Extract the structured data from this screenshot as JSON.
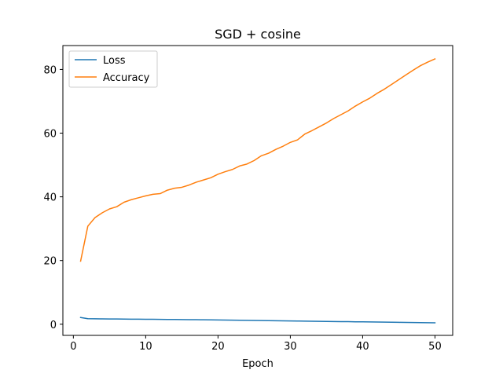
{
  "chart_data": {
    "type": "line",
    "title": "SGD + cosine",
    "xlabel": "Epoch",
    "ylabel": "",
    "xlim": [
      -1.45,
      52.45
    ],
    "ylim": [
      -3.5,
      87.5
    ],
    "xticks": [
      0,
      10,
      20,
      30,
      40,
      50
    ],
    "yticks": [
      0,
      20,
      40,
      60,
      80
    ],
    "grid": false,
    "legend_position": "top-left",
    "x": [
      1,
      2,
      3,
      4,
      5,
      6,
      7,
      8,
      9,
      10,
      11,
      12,
      13,
      14,
      15,
      16,
      17,
      18,
      19,
      20,
      21,
      22,
      23,
      24,
      25,
      26,
      27,
      28,
      29,
      30,
      31,
      32,
      33,
      34,
      35,
      36,
      37,
      38,
      39,
      40,
      41,
      42,
      43,
      44,
      45,
      46,
      47,
      48,
      49,
      50
    ],
    "series": [
      {
        "name": "Loss",
        "color": "#1f77b4",
        "values": [
          2.1,
          1.75,
          1.7,
          1.68,
          1.66,
          1.64,
          1.62,
          1.6,
          1.58,
          1.56,
          1.54,
          1.52,
          1.5,
          1.48,
          1.46,
          1.44,
          1.42,
          1.4,
          1.37,
          1.34,
          1.31,
          1.28,
          1.25,
          1.22,
          1.19,
          1.16,
          1.13,
          1.1,
          1.07,
          1.04,
          1.01,
          0.98,
          0.95,
          0.92,
          0.89,
          0.86,
          0.83,
          0.8,
          0.77,
          0.74,
          0.71,
          0.68,
          0.65,
          0.62,
          0.59,
          0.56,
          0.53,
          0.5,
          0.48,
          0.45
        ]
      },
      {
        "name": "Accuracy",
        "color": "#ff7f0e",
        "values": [
          19.8,
          30.8,
          33.5,
          35.0,
          36.2,
          36.9,
          38.3,
          39.1,
          39.7,
          40.3,
          40.8,
          41.0,
          42.1,
          42.7,
          43.0,
          43.7,
          44.6,
          45.3,
          46.0,
          47.1,
          47.9,
          48.6,
          49.7,
          50.3,
          51.4,
          52.9,
          53.7,
          54.9,
          55.9,
          57.1,
          57.9,
          59.7,
          60.8,
          62.0,
          63.2,
          64.6,
          65.8,
          67.0,
          68.5,
          69.8,
          71.0,
          72.5,
          73.8,
          75.3,
          76.8,
          78.3,
          79.8,
          81.2,
          82.3,
          83.3
        ]
      }
    ]
  }
}
